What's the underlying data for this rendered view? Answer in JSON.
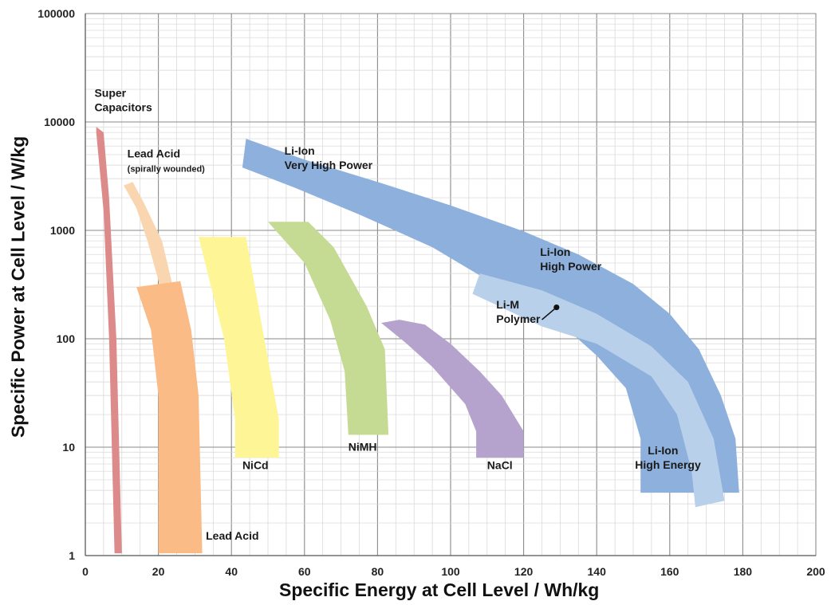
{
  "chart_data": {
    "type": "area",
    "xlabel": "Specific Energy at Cell Level / Wh/kg",
    "ylabel": "Specific Power at Cell Level / W/kg",
    "xlim": [
      0,
      200
    ],
    "ylim": [
      1,
      100000
    ],
    "y_scale": "log",
    "grid": true,
    "x_ticks": [
      0,
      20,
      40,
      60,
      80,
      100,
      120,
      140,
      160,
      180,
      200
    ],
    "x_tick_labels": [
      "0",
      "20",
      "40",
      "60",
      "80",
      "100",
      "120",
      "140",
      "160",
      "180",
      "200"
    ],
    "y_ticks": [
      1,
      10,
      100,
      1000,
      10000,
      100000
    ],
    "y_tick_labels": [
      "1",
      "10",
      "100",
      "1000",
      "10000",
      "100000"
    ],
    "series": [
      {
        "name": "Super Capacitors",
        "color": "#dc8a8a",
        "label_lines": [
          "Super",
          "Capacitors"
        ],
        "polygon": [
          [
            3,
            9000
          ],
          [
            5,
            8000
          ],
          [
            6.5,
            2000
          ],
          [
            8.5,
            100
          ],
          [
            10,
            1.05
          ],
          [
            8,
            1.05
          ],
          [
            6.5,
            100
          ],
          [
            5,
            1500
          ],
          [
            3,
            8000
          ]
        ]
      },
      {
        "name": "Lead Acid (spirally wounded)",
        "color": "#fad6b0",
        "label_lines": [
          "Lead Acid",
          "(spirally wounded)"
        ],
        "polygon": [
          [
            10.5,
            2600
          ],
          [
            13,
            2800
          ],
          [
            16,
            1800
          ],
          [
            21,
            800
          ],
          [
            24,
            300
          ],
          [
            25,
            90
          ],
          [
            21,
            90
          ],
          [
            20.5,
            300
          ],
          [
            17,
            800
          ],
          [
            14,
            1600
          ]
        ]
      },
      {
        "name": "Lead Acid",
        "color": "#fbbb86",
        "label_lines": [
          "Lead Acid"
        ],
        "polygon": [
          [
            14,
            300
          ],
          [
            26,
            340
          ],
          [
            29,
            120
          ],
          [
            31,
            30
          ],
          [
            32,
            1.05
          ],
          [
            20,
            1.05
          ],
          [
            20,
            30
          ],
          [
            18,
            120
          ]
        ]
      },
      {
        "name": "NiCd",
        "color": "#fef596",
        "label_lines": [
          "NiCd"
        ],
        "polygon": [
          [
            31,
            870
          ],
          [
            44,
            870
          ],
          [
            49,
            100
          ],
          [
            53,
            18
          ],
          [
            53,
            8
          ],
          [
            41,
            8
          ],
          [
            41,
            18
          ],
          [
            38,
            100
          ]
        ]
      },
      {
        "name": "NiMH",
        "color": "#c5da93",
        "label_lines": [
          "NiMH"
        ],
        "polygon": [
          [
            50,
            1200
          ],
          [
            61,
            1200
          ],
          [
            68,
            700
          ],
          [
            77,
            200
          ],
          [
            82,
            80
          ],
          [
            83,
            13
          ],
          [
            72,
            13
          ],
          [
            71,
            50
          ],
          [
            67,
            150
          ],
          [
            60,
            500
          ]
        ]
      },
      {
        "name": "NaCl",
        "color": "#b5a3cd",
        "label_lines": [
          "NaCl"
        ],
        "polygon": [
          [
            81,
            140
          ],
          [
            86,
            150
          ],
          [
            93,
            135
          ],
          [
            100,
            90
          ],
          [
            108,
            50
          ],
          [
            114,
            30
          ],
          [
            120,
            14
          ],
          [
            120,
            8
          ],
          [
            107,
            8
          ],
          [
            107,
            14
          ],
          [
            104,
            25
          ],
          [
            95,
            55
          ],
          [
            88,
            90
          ]
        ]
      },
      {
        "name": "Li-Ion Very High Power / High Power",
        "color": "#8db0dc",
        "label_lines": [
          "Li-Ion",
          "Very High Power"
        ],
        "polygon": [
          [
            44,
            7000
          ],
          [
            60,
            4500
          ],
          [
            80,
            2800
          ],
          [
            100,
            1700
          ],
          [
            120,
            980
          ],
          [
            135,
            600
          ],
          [
            150,
            320
          ],
          [
            160,
            170
          ],
          [
            168,
            80
          ],
          [
            174,
            30
          ],
          [
            178,
            12
          ],
          [
            179,
            3.8
          ],
          [
            152,
            3.8
          ],
          [
            152,
            12
          ],
          [
            148,
            35
          ],
          [
            140,
            70
          ],
          [
            130,
            140
          ],
          [
            110,
            350
          ],
          [
            95,
            700
          ],
          [
            75,
            1400
          ],
          [
            57,
            2500
          ],
          [
            43,
            3800
          ]
        ]
      },
      {
        "name": "Li-M Polymer",
        "color": "#b8d0ea",
        "label_lines": [
          "Li-M",
          "Polymer"
        ],
        "polygon": [
          [
            108,
            400
          ],
          [
            125,
            280
          ],
          [
            140,
            170
          ],
          [
            155,
            85
          ],
          [
            165,
            40
          ],
          [
            172,
            12
          ],
          [
            175,
            3.2
          ],
          [
            167,
            2.8
          ],
          [
            166,
            6
          ],
          [
            162,
            20
          ],
          [
            155,
            45
          ],
          [
            140,
            90
          ],
          [
            125,
            130
          ],
          [
            106,
            260
          ]
        ]
      }
    ],
    "annotations": [
      {
        "text": "Li-Ion",
        "text2": "High Power"
      },
      {
        "text": "Li-Ion",
        "text2": "High Energy"
      }
    ]
  }
}
